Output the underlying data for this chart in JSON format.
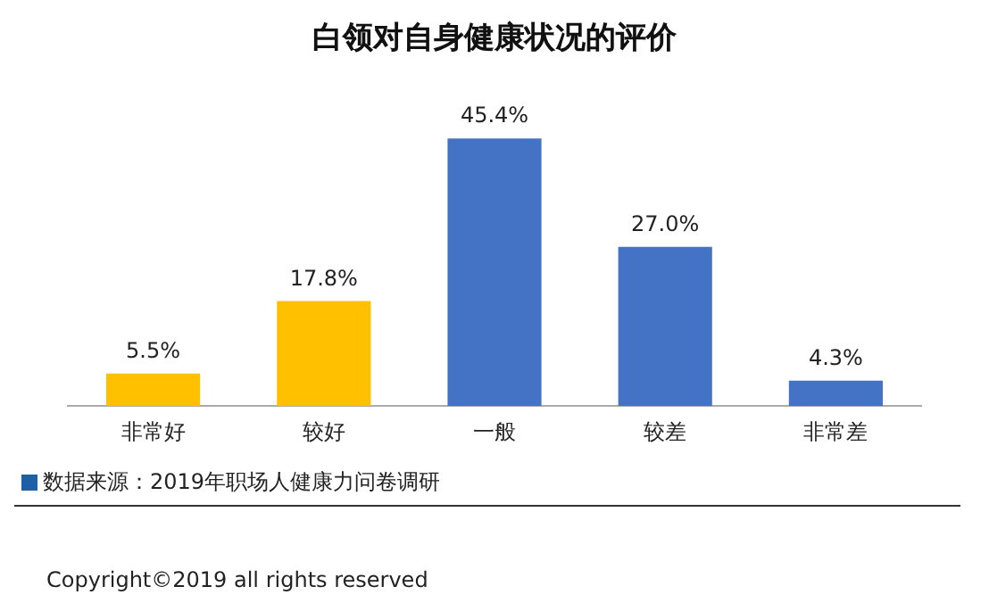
{
  "chart_data": {
    "type": "bar",
    "title": "白领对自身健康状况的评价",
    "categories": [
      "非常好",
      "较好",
      "一般",
      "较差",
      "非常差"
    ],
    "values": [
      5.5,
      17.8,
      45.4,
      27.0,
      4.3
    ],
    "value_labels": [
      "5.5%",
      "17.8%",
      "45.4%",
      "27.0%",
      "4.3%"
    ],
    "colors": [
      "#ffc000",
      "#ffc000",
      "#4472c4",
      "#4472c4",
      "#4472c4"
    ],
    "grid": false,
    "legend": false,
    "annotations": [
      "数据来源：2019年职场人健康力问卷调研",
      "Copyright©2019 all rights reserved"
    ]
  }
}
